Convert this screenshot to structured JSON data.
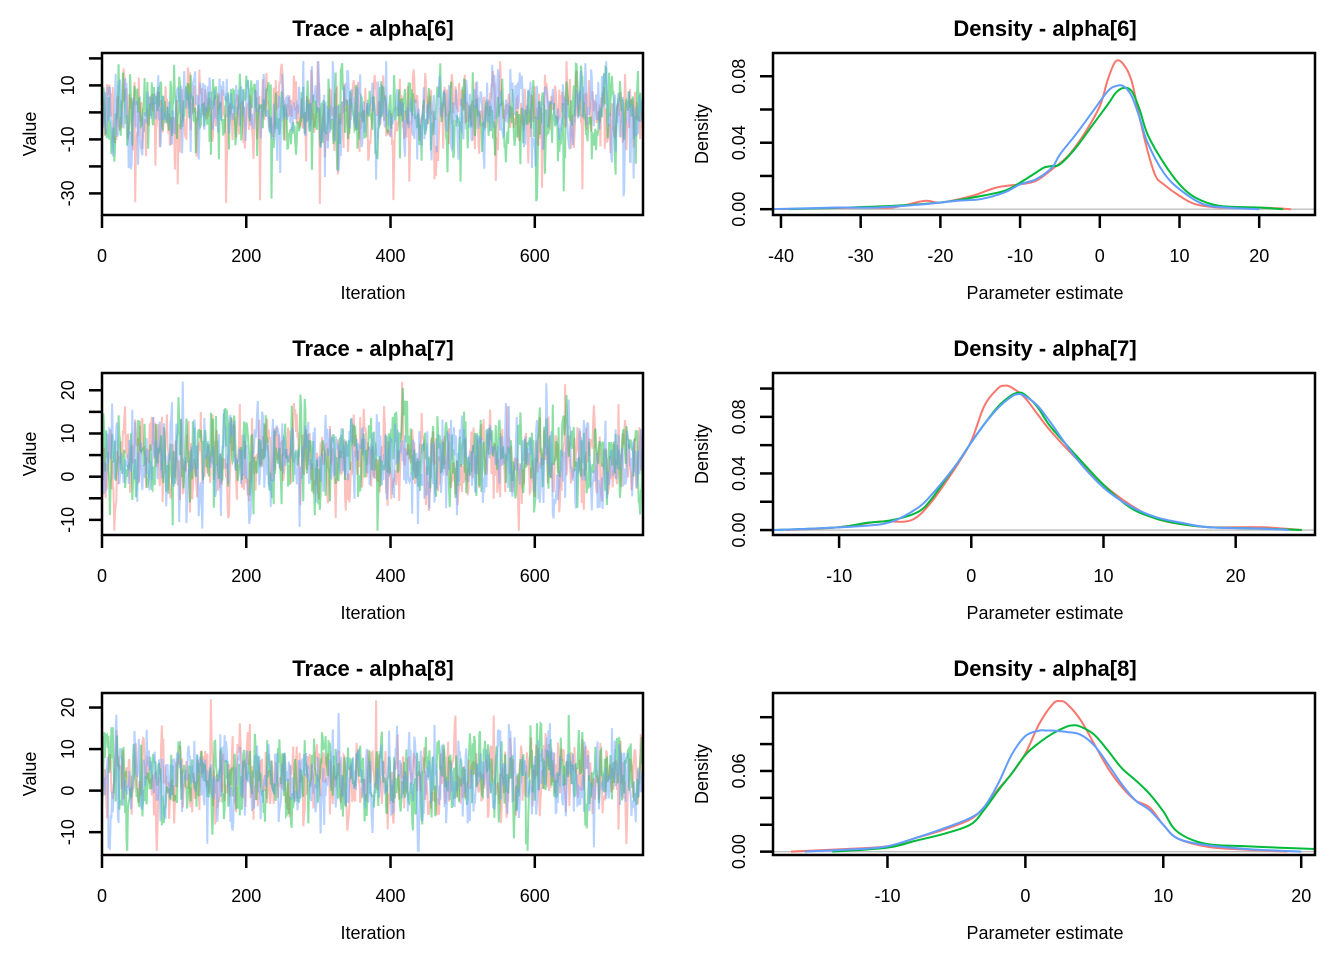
{
  "figure": {
    "chain_colors": [
      "#F8766D",
      "#00BA38",
      "#619CFF"
    ],
    "trace_colors": [
      "#F8766D",
      "#00BA38",
      "#619CFF"
    ],
    "baseline_color": "#BEBEBE",
    "chains": 3
  },
  "chart_data": [
    {
      "id": "trace-alpha6",
      "type": "line",
      "title": "Trace - alpha[6]",
      "xlabel": "Iteration",
      "ylabel": "Value",
      "xlim": [
        0,
        750
      ],
      "ylim": [
        -38,
        22
      ],
      "xticks": [
        0,
        200,
        400,
        600
      ],
      "xtick_labels": [
        "0",
        "200",
        "400",
        "600"
      ],
      "yticks": [
        20,
        10,
        0,
        -10,
        -20,
        -30
      ],
      "ytick_labels": [
        "",
        "10",
        "",
        "-10",
        "",
        "-30"
      ],
      "n_iterations": 750,
      "series_summary": {
        "center": 1,
        "spread": 6,
        "skew": "left",
        "min": -37,
        "max": 19
      },
      "series": [
        {
          "name": "chain 1",
          "color": "#F8766D",
          "seed": 11
        },
        {
          "name": "chain 2",
          "color": "#00BA38",
          "seed": 23
        },
        {
          "name": "chain 3",
          "color": "#619CFF",
          "seed": 37
        }
      ]
    },
    {
      "id": "density-alpha6",
      "type": "line",
      "title": "Density - alpha[6]",
      "xlabel": "Parameter estimate",
      "ylabel": "Density",
      "xlim": [
        -41,
        27
      ],
      "ylim": [
        -0.0035,
        0.094
      ],
      "xticks": [
        -40,
        -30,
        -20,
        -10,
        0,
        10,
        20
      ],
      "xtick_labels": [
        "-40",
        "-30",
        "-20",
        "-10",
        "0",
        "10",
        "20"
      ],
      "yticks": [
        0.0,
        0.02,
        0.04,
        0.06,
        0.08
      ],
      "ytick_labels": [
        "0.00",
        "",
        "0.04",
        "",
        "0.08"
      ],
      "series": [
        {
          "name": "chain 1",
          "color": "#F8766D",
          "x": [
            -40,
            -30,
            -26,
            -22,
            -20,
            -16,
            -13,
            -10,
            -8,
            -6,
            -4,
            -2,
            0,
            1,
            2,
            3,
            4,
            5,
            6,
            7,
            8,
            10,
            12,
            15,
            20,
            24
          ],
          "y": [
            0.0,
            0.001,
            0.001,
            0.005,
            0.004,
            0.008,
            0.013,
            0.015,
            0.017,
            0.024,
            0.032,
            0.045,
            0.062,
            0.078,
            0.089,
            0.087,
            0.077,
            0.055,
            0.035,
            0.02,
            0.015,
            0.008,
            0.003,
            0.001,
            0.001,
            0.0
          ]
        },
        {
          "name": "chain 2",
          "color": "#00BA38",
          "x": [
            -39,
            -32,
            -26,
            -20,
            -16,
            -12,
            -10,
            -8,
            -7,
            -6,
            -5,
            -3,
            -1,
            1,
            2,
            3,
            4,
            5,
            6,
            8,
            10,
            12,
            15,
            20,
            23
          ],
          "y": [
            0.0,
            0.001,
            0.002,
            0.004,
            0.007,
            0.011,
            0.016,
            0.022,
            0.025,
            0.026,
            0.027,
            0.037,
            0.05,
            0.063,
            0.07,
            0.073,
            0.071,
            0.06,
            0.045,
            0.028,
            0.015,
            0.007,
            0.002,
            0.001,
            0.0
          ]
        },
        {
          "name": "chain 3",
          "color": "#619CFF",
          "x": [
            -41,
            -33,
            -28,
            -22,
            -18,
            -15,
            -12,
            -10,
            -8,
            -6,
            -5,
            -3,
            -1,
            1,
            2,
            3,
            4,
            5,
            6,
            8,
            10,
            13,
            16,
            20
          ],
          "y": [
            0.0,
            0.001,
            0.001,
            0.003,
            0.005,
            0.006,
            0.01,
            0.015,
            0.018,
            0.025,
            0.033,
            0.045,
            0.058,
            0.071,
            0.074,
            0.074,
            0.068,
            0.055,
            0.04,
            0.022,
            0.012,
            0.003,
            0.001,
            0.0
          ]
        }
      ]
    },
    {
      "id": "trace-alpha7",
      "type": "line",
      "title": "Trace - alpha[7]",
      "xlabel": "Iteration",
      "ylabel": "Value",
      "xlim": [
        0,
        750
      ],
      "ylim": [
        -13.5,
        24
      ],
      "xticks": [
        0,
        200,
        400,
        600
      ],
      "xtick_labels": [
        "0",
        "200",
        "400",
        "600"
      ],
      "yticks": [
        20,
        15,
        10,
        5,
        0,
        -5,
        -10
      ],
      "ytick_labels": [
        "20",
        "",
        "10",
        "",
        "0",
        "",
        "-10"
      ],
      "n_iterations": 750,
      "series_summary": {
        "center": 4,
        "spread": 4.5,
        "skew": "none",
        "min": -12.5,
        "max": 22
      },
      "series": [
        {
          "name": "chain 1",
          "color": "#F8766D",
          "seed": 51
        },
        {
          "name": "chain 2",
          "color": "#00BA38",
          "seed": 67
        },
        {
          "name": "chain 3",
          "color": "#619CFF",
          "seed": 83
        }
      ]
    },
    {
      "id": "density-alpha7",
      "type": "line",
      "title": "Density - alpha[7]",
      "xlabel": "Parameter estimate",
      "ylabel": "Density",
      "xlim": [
        -15,
        26
      ],
      "ylim": [
        -0.0035,
        0.111
      ],
      "xticks": [
        -10,
        0,
        10,
        20
      ],
      "xtick_labels": [
        "-10",
        "0",
        "10",
        "20"
      ],
      "yticks": [
        0.0,
        0.02,
        0.04,
        0.06,
        0.08,
        0.1
      ],
      "ytick_labels": [
        "0.00",
        "",
        "0.04",
        "",
        "0.08",
        ""
      ],
      "series": [
        {
          "name": "chain 1",
          "color": "#F8766D",
          "x": [
            -14,
            -10,
            -7,
            -5,
            -4,
            -3,
            -2,
            -1,
            0,
            1,
            2,
            2.5,
            3,
            4,
            5,
            6,
            8,
            10,
            12,
            14,
            16,
            18,
            22,
            25
          ],
          "y": [
            0.0,
            0.002,
            0.006,
            0.006,
            0.01,
            0.02,
            0.033,
            0.047,
            0.063,
            0.088,
            0.1,
            0.102,
            0.101,
            0.094,
            0.082,
            0.07,
            0.05,
            0.032,
            0.018,
            0.008,
            0.004,
            0.002,
            0.002,
            0.0
          ]
        },
        {
          "name": "chain 2",
          "color": "#00BA38",
          "x": [
            -15,
            -10,
            -8,
            -6,
            -4,
            -3,
            -2,
            -1,
            0,
            1,
            2,
            3,
            3.5,
            4,
            5,
            6,
            8,
            10,
            12,
            14,
            16,
            18,
            22,
            25
          ],
          "y": [
            0.0,
            0.002,
            0.005,
            0.007,
            0.013,
            0.022,
            0.035,
            0.048,
            0.062,
            0.075,
            0.087,
            0.095,
            0.097,
            0.096,
            0.087,
            0.073,
            0.052,
            0.032,
            0.016,
            0.008,
            0.004,
            0.002,
            0.001,
            0.0
          ]
        },
        {
          "name": "chain 3",
          "color": "#619CFF",
          "x": [
            -15,
            -12,
            -8,
            -6,
            -4,
            -3,
            -2,
            -1,
            0,
            1,
            2,
            3,
            3.5,
            4,
            5,
            6,
            8,
            10,
            12,
            14,
            16,
            18,
            22,
            24
          ],
          "y": [
            0.0,
            0.001,
            0.003,
            0.006,
            0.016,
            0.025,
            0.036,
            0.048,
            0.062,
            0.075,
            0.086,
            0.094,
            0.096,
            0.095,
            0.088,
            0.076,
            0.05,
            0.03,
            0.017,
            0.009,
            0.005,
            0.002,
            0.001,
            0.0
          ]
        }
      ]
    },
    {
      "id": "trace-alpha8",
      "type": "line",
      "title": "Trace - alpha[8]",
      "xlabel": "Iteration",
      "ylabel": "Value",
      "xlim": [
        0,
        750
      ],
      "ylim": [
        -15.5,
        23.5
      ],
      "xticks": [
        0,
        200,
        400,
        600
      ],
      "xtick_labels": [
        "0",
        "200",
        "400",
        "600"
      ],
      "yticks": [
        20,
        10,
        0,
        -10
      ],
      "ytick_labels": [
        "20",
        "10",
        "0",
        "-10"
      ],
      "n_iterations": 750,
      "series_summary": {
        "center": 3,
        "spread": 4.5,
        "skew": "none",
        "min": -14.5,
        "max": 22
      },
      "series": [
        {
          "name": "chain 1",
          "color": "#F8766D",
          "seed": 97
        },
        {
          "name": "chain 2",
          "color": "#00BA38",
          "seed": 113
        },
        {
          "name": "chain 3",
          "color": "#619CFF",
          "seed": 131
        }
      ]
    },
    {
      "id": "density-alpha8",
      "type": "line",
      "title": "Density - alpha[8]",
      "xlabel": "Parameter estimate",
      "ylabel": "Density",
      "xlim": [
        -18.3,
        21
      ],
      "ylim": [
        -0.0025,
        0.118
      ],
      "xticks": [
        -10,
        0,
        10,
        20
      ],
      "xtick_labels": [
        "-10",
        "0",
        "10",
        "20"
      ],
      "yticks": [
        0.0,
        0.02,
        0.04,
        0.06,
        0.08,
        0.1
      ],
      "ytick_labels": [
        "0.00",
        "",
        "",
        "0.06",
        "",
        ""
      ],
      "series": [
        {
          "name": "chain 1",
          "color": "#F8766D",
          "x": [
            -17,
            -13,
            -10,
            -8,
            -6,
            -4,
            -3,
            -2,
            -1,
            0,
            1,
            2,
            2.5,
            3,
            4,
            5,
            6,
            7,
            8,
            9,
            10,
            11,
            13,
            15,
            19
          ],
          "y": [
            0.0,
            0.002,
            0.004,
            0.01,
            0.016,
            0.024,
            0.033,
            0.046,
            0.058,
            0.073,
            0.095,
            0.11,
            0.112,
            0.11,
            0.098,
            0.08,
            0.062,
            0.048,
            0.038,
            0.033,
            0.02,
            0.01,
            0.004,
            0.002,
            0.0
          ]
        },
        {
          "name": "chain 2",
          "color": "#00BA38",
          "x": [
            -14,
            -10,
            -8,
            -6,
            -4,
            -3,
            -2,
            -1,
            0,
            1,
            2,
            3,
            3.5,
            4,
            5,
            6,
            7,
            8,
            9,
            10,
            11,
            13,
            16,
            21
          ],
          "y": [
            0.0,
            0.003,
            0.008,
            0.013,
            0.02,
            0.031,
            0.045,
            0.058,
            0.072,
            0.081,
            0.088,
            0.093,
            0.094,
            0.093,
            0.087,
            0.075,
            0.062,
            0.053,
            0.043,
            0.03,
            0.015,
            0.006,
            0.004,
            0.002
          ]
        },
        {
          "name": "chain 3",
          "color": "#619CFF",
          "x": [
            -16,
            -12,
            -10,
            -8,
            -6,
            -4,
            -3,
            -2,
            -1,
            0,
            1,
            1.5,
            2,
            3,
            4,
            5,
            6,
            7,
            8,
            9,
            10,
            11,
            13,
            16,
            20
          ],
          "y": [
            0.0,
            0.002,
            0.004,
            0.01,
            0.017,
            0.025,
            0.033,
            0.05,
            0.072,
            0.086,
            0.09,
            0.09,
            0.09,
            0.089,
            0.087,
            0.079,
            0.065,
            0.05,
            0.038,
            0.031,
            0.02,
            0.01,
            0.005,
            0.002,
            0.0
          ]
        }
      ]
    }
  ]
}
